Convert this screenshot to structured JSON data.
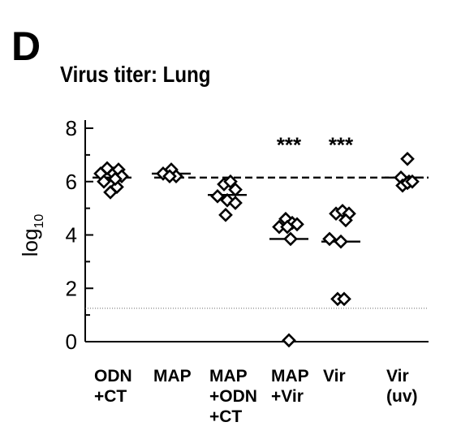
{
  "panel_letter": "D",
  "chart_data": {
    "type": "scatter",
    "title": "Virus titer: Lung",
    "ylabel": {
      "base": "log",
      "subscript": "10"
    },
    "ylim": [
      0,
      8
    ],
    "yticks": [
      "0",
      "2",
      "4",
      "6",
      "8"
    ],
    "grid": false,
    "reference_lines": {
      "dashed": 6.15,
      "dotted": 1.25
    },
    "categories": [
      [
        "ODN",
        "+CT"
      ],
      [
        "MAP"
      ],
      [
        "MAP",
        "+ODN",
        "+CT"
      ],
      [
        "MAP",
        "+Vir"
      ],
      [
        "Vir"
      ],
      [
        "Vir",
        "(uv)"
      ]
    ],
    "groups": [
      {
        "median": 6.15,
        "annotation": "",
        "points": [
          [
            -0.35,
            6.3
          ],
          [
            -0.15,
            6.5
          ],
          [
            0.05,
            6.3
          ],
          [
            0.2,
            6.45
          ],
          [
            0.3,
            6.2
          ],
          [
            -0.25,
            6.0
          ],
          [
            0.15,
            5.8
          ],
          [
            -0.05,
            5.6
          ],
          [
            0.1,
            6.1
          ]
        ]
      },
      {
        "median": 6.3,
        "annotation": "",
        "points": [
          [
            -0.25,
            6.3
          ],
          [
            0.0,
            6.45
          ],
          [
            0.15,
            6.2
          ],
          [
            -0.05,
            6.2
          ]
        ]
      },
      {
        "median": 5.5,
        "annotation": "",
        "points": [
          [
            -0.3,
            5.45
          ],
          [
            -0.1,
            5.9
          ],
          [
            0.1,
            6.0
          ],
          [
            0.25,
            5.7
          ],
          [
            0.0,
            5.3
          ],
          [
            0.25,
            5.2
          ],
          [
            -0.05,
            4.75
          ]
        ]
      },
      {
        "median": 3.85,
        "annotation": "***",
        "points": [
          [
            -0.3,
            4.3
          ],
          [
            -0.1,
            4.6
          ],
          [
            0.1,
            4.45
          ],
          [
            0.25,
            4.4
          ],
          [
            -0.05,
            4.3
          ],
          [
            0.05,
            3.85
          ],
          [
            0.0,
            0.05
          ]
        ]
      },
      {
        "median": 3.75,
        "annotation": "***",
        "points": [
          [
            -0.35,
            3.85
          ],
          [
            -0.15,
            4.8
          ],
          [
            0.05,
            4.9
          ],
          [
            0.25,
            4.8
          ],
          [
            0.15,
            4.55
          ],
          [
            0.0,
            3.75
          ],
          [
            -0.1,
            1.6
          ],
          [
            0.1,
            1.6
          ]
        ]
      },
      {
        "median": 6.15,
        "annotation": "",
        "points": [
          [
            0.1,
            6.85
          ],
          [
            -0.1,
            6.15
          ],
          [
            0.15,
            6.0
          ],
          [
            -0.05,
            5.85
          ],
          [
            0.1,
            5.95
          ],
          [
            0.25,
            6.0
          ]
        ]
      }
    ]
  }
}
